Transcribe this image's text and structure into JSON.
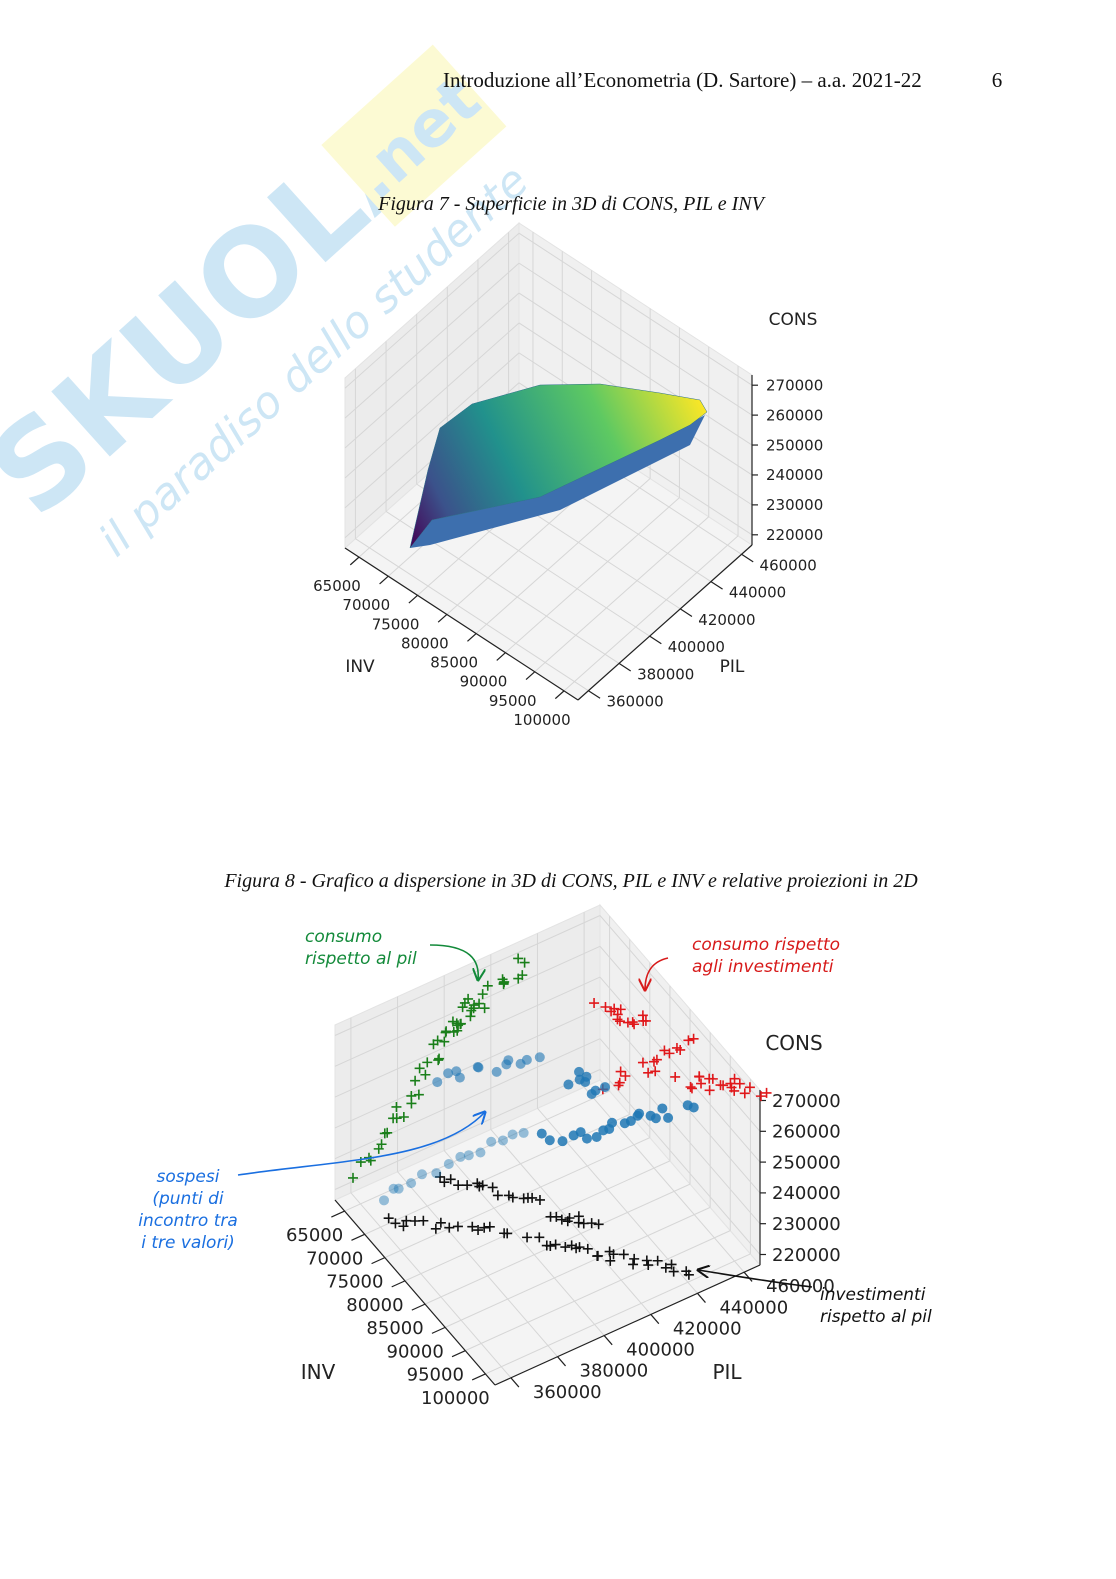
{
  "header": {
    "text": "Introduzione all’Econometria (D. Sartore) – a.a. 2021-22",
    "page": "6"
  },
  "watermark": {
    "brand": "SKUOLA",
    "domain": ".net",
    "tagline": "il paradiso dello studente"
  },
  "figures": [
    {
      "caption": "Figura 7 -  Superficie in 3D di CONS, PIL  e  INV",
      "x_label": "INV",
      "x_ticks": [
        65000,
        70000,
        75000,
        80000,
        85000,
        90000,
        95000,
        100000
      ],
      "y_label": "PIL",
      "y_ticks": [
        360000,
        380000,
        400000,
        420000,
        440000,
        460000
      ],
      "z_label": "CONS",
      "z_ticks": [
        220000,
        230000,
        240000,
        250000,
        260000,
        270000
      ]
    },
    {
      "caption": "Figura 8 -  Grafico a dispersione in 3D di CONS, PIL  e  INV e relative proiezioni in 2D",
      "x_label": "INV",
      "x_ticks": [
        65000,
        70000,
        75000,
        80000,
        85000,
        90000,
        95000,
        100000
      ],
      "y_label": "PIL",
      "y_ticks": [
        360000,
        380000,
        400000,
        420000,
        440000,
        460000
      ],
      "z_label": "CONS",
      "z_ticks": [
        220000,
        230000,
        240000,
        250000,
        260000,
        270000
      ],
      "notes": [
        {
          "lines": [
            "consumo",
            "rispetto al pil"
          ]
        },
        {
          "lines": [
            "consumo rispetto",
            "agli investimenti"
          ]
        },
        {
          "lines": [
            "sospesi",
            "(punti di",
            "incontro tra",
            "i tre valori)"
          ]
        },
        {
          "lines": [
            "investimenti",
            "rispetto al pil"
          ]
        }
      ]
    }
  ]
}
